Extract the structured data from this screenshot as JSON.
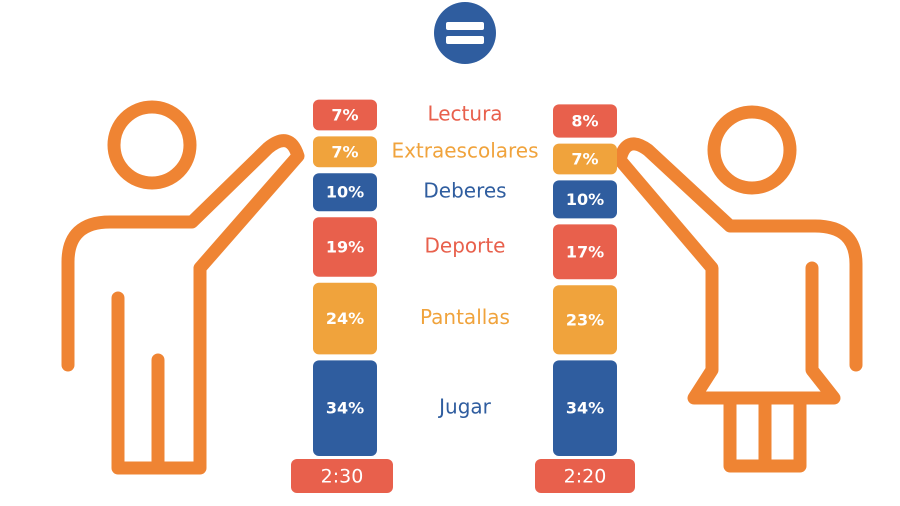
{
  "chart_data": {
    "type": "stacked-bar",
    "categories": [
      "Jugar",
      "Pantallas",
      "Deporte",
      "Deberes",
      "Extraescolares",
      "Lectura"
    ],
    "colors": [
      "#2f5d9f",
      "#f0a33c",
      "#e8604c",
      "#2f5d9f",
      "#f0a33c",
      "#e8604c"
    ],
    "total_color": "#e8604c",
    "columns": [
      {
        "values": [
          34,
          24,
          19,
          10,
          7,
          7
        ],
        "value_labels": [
          "34%",
          "24%",
          "19%",
          "10%",
          "7%",
          "7%"
        ],
        "total": "2:30"
      },
      {
        "values": [
          34,
          23,
          17,
          10,
          7,
          8
        ],
        "value_labels": [
          "34%",
          "23%",
          "17%",
          "10%",
          "7%",
          "8%"
        ],
        "total": "2:20"
      }
    ]
  }
}
